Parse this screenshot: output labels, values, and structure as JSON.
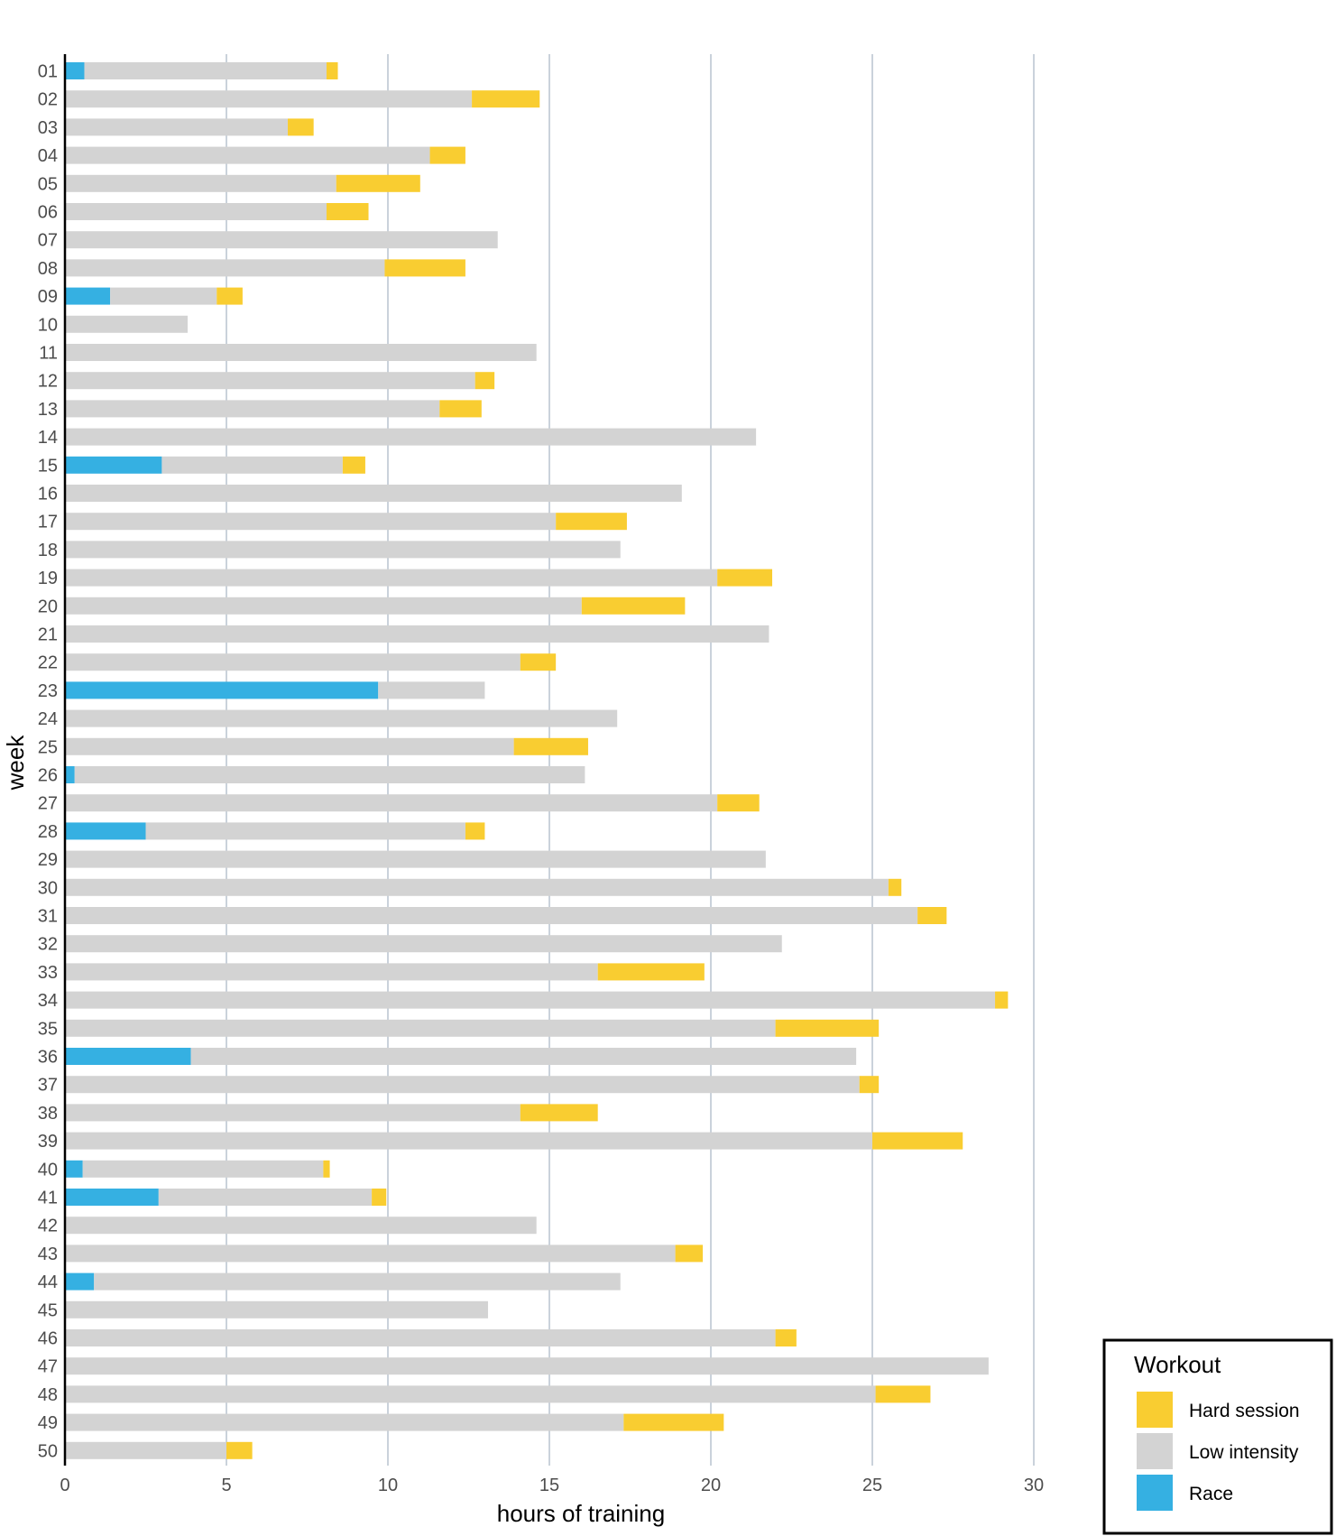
{
  "chart_data": {
    "type": "bar",
    "orientation": "horizontal",
    "stacked": true,
    "xlabel": "hours of training",
    "ylabel": "week",
    "xlim": [
      0,
      31
    ],
    "xticks": [
      0,
      5,
      10,
      15,
      20,
      25,
      30
    ],
    "xtick_labels": [
      "0",
      "5",
      "10",
      "15",
      "20",
      "25",
      "30"
    ],
    "grid": "vertical major",
    "legend": {
      "title": "Workout",
      "position": "bottom-right",
      "entries": [
        {
          "key": "hard",
          "label": "Hard session",
          "color": "#F9CD31"
        },
        {
          "key": "low",
          "label": "Low intensity",
          "color": "#D3D3D3"
        },
        {
          "key": "race",
          "label": "Race",
          "color": "#35B0E2"
        }
      ]
    },
    "stack_order": [
      "race",
      "low",
      "hard"
    ],
    "categories": [
      "01",
      "02",
      "03",
      "04",
      "05",
      "06",
      "07",
      "08",
      "09",
      "10",
      "11",
      "12",
      "13",
      "14",
      "15",
      "16",
      "17",
      "18",
      "19",
      "20",
      "21",
      "22",
      "23",
      "24",
      "25",
      "26",
      "27",
      "28",
      "29",
      "30",
      "31",
      "32",
      "33",
      "34",
      "35",
      "36",
      "37",
      "38",
      "39",
      "40",
      "41",
      "42",
      "43",
      "44",
      "45",
      "46",
      "47",
      "48",
      "49",
      "50"
    ],
    "series": [
      {
        "key": "race",
        "name": "Race",
        "color": "#35B0E2",
        "values": [
          0.6,
          0,
          0,
          0,
          0,
          0,
          0,
          0,
          1.4,
          0,
          0,
          0,
          0,
          0,
          3.0,
          0,
          0,
          0,
          0,
          0,
          0,
          0,
          9.7,
          0,
          0,
          0.3,
          0,
          2.5,
          0,
          0,
          0,
          0,
          0,
          0,
          0,
          3.9,
          0,
          0,
          0,
          0.55,
          2.9,
          0,
          0,
          0.9,
          0,
          0,
          0,
          0,
          0,
          0
        ]
      },
      {
        "key": "low",
        "name": "Low intensity",
        "color": "#D3D3D3",
        "values": [
          7.5,
          12.6,
          6.9,
          11.3,
          8.4,
          8.1,
          13.4,
          9.9,
          3.3,
          3.8,
          14.6,
          12.7,
          11.6,
          21.4,
          5.6,
          19.1,
          15.2,
          17.2,
          20.2,
          16.0,
          21.8,
          14.1,
          3.3,
          17.1,
          13.9,
          15.8,
          20.2,
          9.9,
          21.7,
          25.5,
          26.4,
          22.2,
          16.5,
          28.8,
          22.0,
          20.6,
          24.6,
          14.1,
          25.0,
          7.45,
          6.6,
          14.6,
          18.9,
          16.3,
          13.1,
          22.0,
          28.6,
          25.1,
          17.3,
          5.0
        ]
      },
      {
        "key": "hard",
        "name": "Hard session",
        "color": "#F9CD31",
        "values": [
          0.35,
          2.1,
          0.8,
          1.1,
          2.6,
          1.3,
          0,
          2.5,
          0.8,
          0,
          0,
          0.6,
          1.3,
          0,
          0.7,
          0,
          2.2,
          0,
          1.7,
          3.2,
          0,
          1.1,
          0,
          0,
          2.3,
          0,
          1.3,
          0.6,
          0,
          0.4,
          0.9,
          0,
          3.3,
          0.4,
          3.2,
          0,
          0.6,
          2.4,
          2.8,
          0.2,
          0.45,
          0,
          0.85,
          0,
          0,
          0.65,
          0,
          1.7,
          3.1,
          0.8
        ]
      }
    ]
  }
}
